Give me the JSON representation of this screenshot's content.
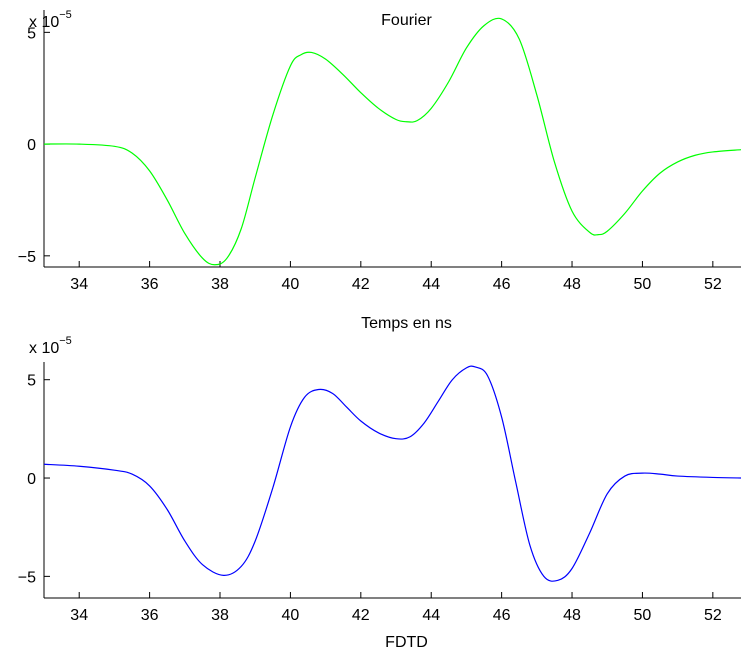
{
  "chart_data": [
    {
      "type": "line",
      "title": "Fourier",
      "xlabel": "Temps en ns",
      "ylabel": "",
      "y_exponent_label": "x 10",
      "y_exponent": "−5",
      "xlim": [
        33,
        52.8
      ],
      "ylim": [
        -5.5,
        6
      ],
      "xticks": [
        34,
        36,
        38,
        40,
        42,
        44,
        46,
        48,
        50,
        52
      ],
      "yticks": [
        -5,
        0,
        5
      ],
      "ytick_labels": [
        "−5",
        "0",
        "5"
      ],
      "grid": false,
      "series": [
        {
          "color": "#00ff00",
          "x": [
            33,
            34,
            35,
            35.5,
            36,
            36.5,
            37,
            37.5,
            37.85,
            38.2,
            38.6,
            39,
            39.5,
            40,
            40.3,
            40.6,
            41,
            41.5,
            42,
            42.5,
            43,
            43.3,
            43.6,
            44,
            44.5,
            45,
            45.5,
            46,
            46.5,
            47,
            47.5,
            48,
            48.5,
            48.75,
            49,
            49.5,
            50,
            50.5,
            51,
            51.5,
            52,
            52.8
          ],
          "y": [
            0,
            0,
            -0.1,
            -0.4,
            -1.2,
            -2.5,
            -4.0,
            -5.1,
            -5.4,
            -5.1,
            -3.8,
            -1.5,
            1.3,
            3.5,
            4.0,
            4.1,
            3.8,
            3.1,
            2.3,
            1.6,
            1.1,
            1.0,
            1.05,
            1.6,
            2.8,
            4.3,
            5.3,
            5.6,
            4.7,
            2.2,
            -0.8,
            -3.0,
            -3.95,
            -4.05,
            -3.9,
            -3.1,
            -2.1,
            -1.3,
            -0.8,
            -0.5,
            -0.35,
            -0.25
          ]
        }
      ]
    },
    {
      "type": "line",
      "title": "",
      "xlabel": "FDTD",
      "ylabel": "",
      "y_exponent_label": "x 10",
      "y_exponent": "−5",
      "xlim": [
        33,
        52.8
      ],
      "ylim": [
        -6.1,
        5.9
      ],
      "xticks": [
        34,
        36,
        38,
        40,
        42,
        44,
        46,
        48,
        50,
        52
      ],
      "yticks": [
        -5,
        0,
        5
      ],
      "ytick_labels": [
        "−5",
        "0",
        "5"
      ],
      "grid": false,
      "series": [
        {
          "color": "#0000ff",
          "x": [
            33,
            34,
            35,
            35.5,
            36,
            36.5,
            37,
            37.5,
            38.1,
            38.6,
            39,
            39.5,
            40,
            40.4,
            40.8,
            41.2,
            41.6,
            42,
            42.5,
            43,
            43.4,
            43.8,
            44.2,
            44.6,
            45,
            45.25,
            45.6,
            46,
            46.4,
            46.8,
            47.2,
            47.6,
            48,
            48.5,
            49,
            49.5,
            50,
            50.5,
            51,
            52,
            52.8
          ],
          "y": [
            0.7,
            0.6,
            0.4,
            0.2,
            -0.4,
            -1.6,
            -3.2,
            -4.4,
            -4.95,
            -4.5,
            -3.2,
            -0.5,
            2.6,
            4.1,
            4.5,
            4.3,
            3.6,
            2.9,
            2.3,
            2.0,
            2.1,
            2.8,
            3.9,
            5.0,
            5.6,
            5.65,
            5.2,
            3.1,
            -0.2,
            -3.4,
            -5.0,
            -5.2,
            -4.6,
            -2.8,
            -0.8,
            0.1,
            0.25,
            0.2,
            0.1,
            0.03,
            0
          ]
        }
      ]
    }
  ]
}
